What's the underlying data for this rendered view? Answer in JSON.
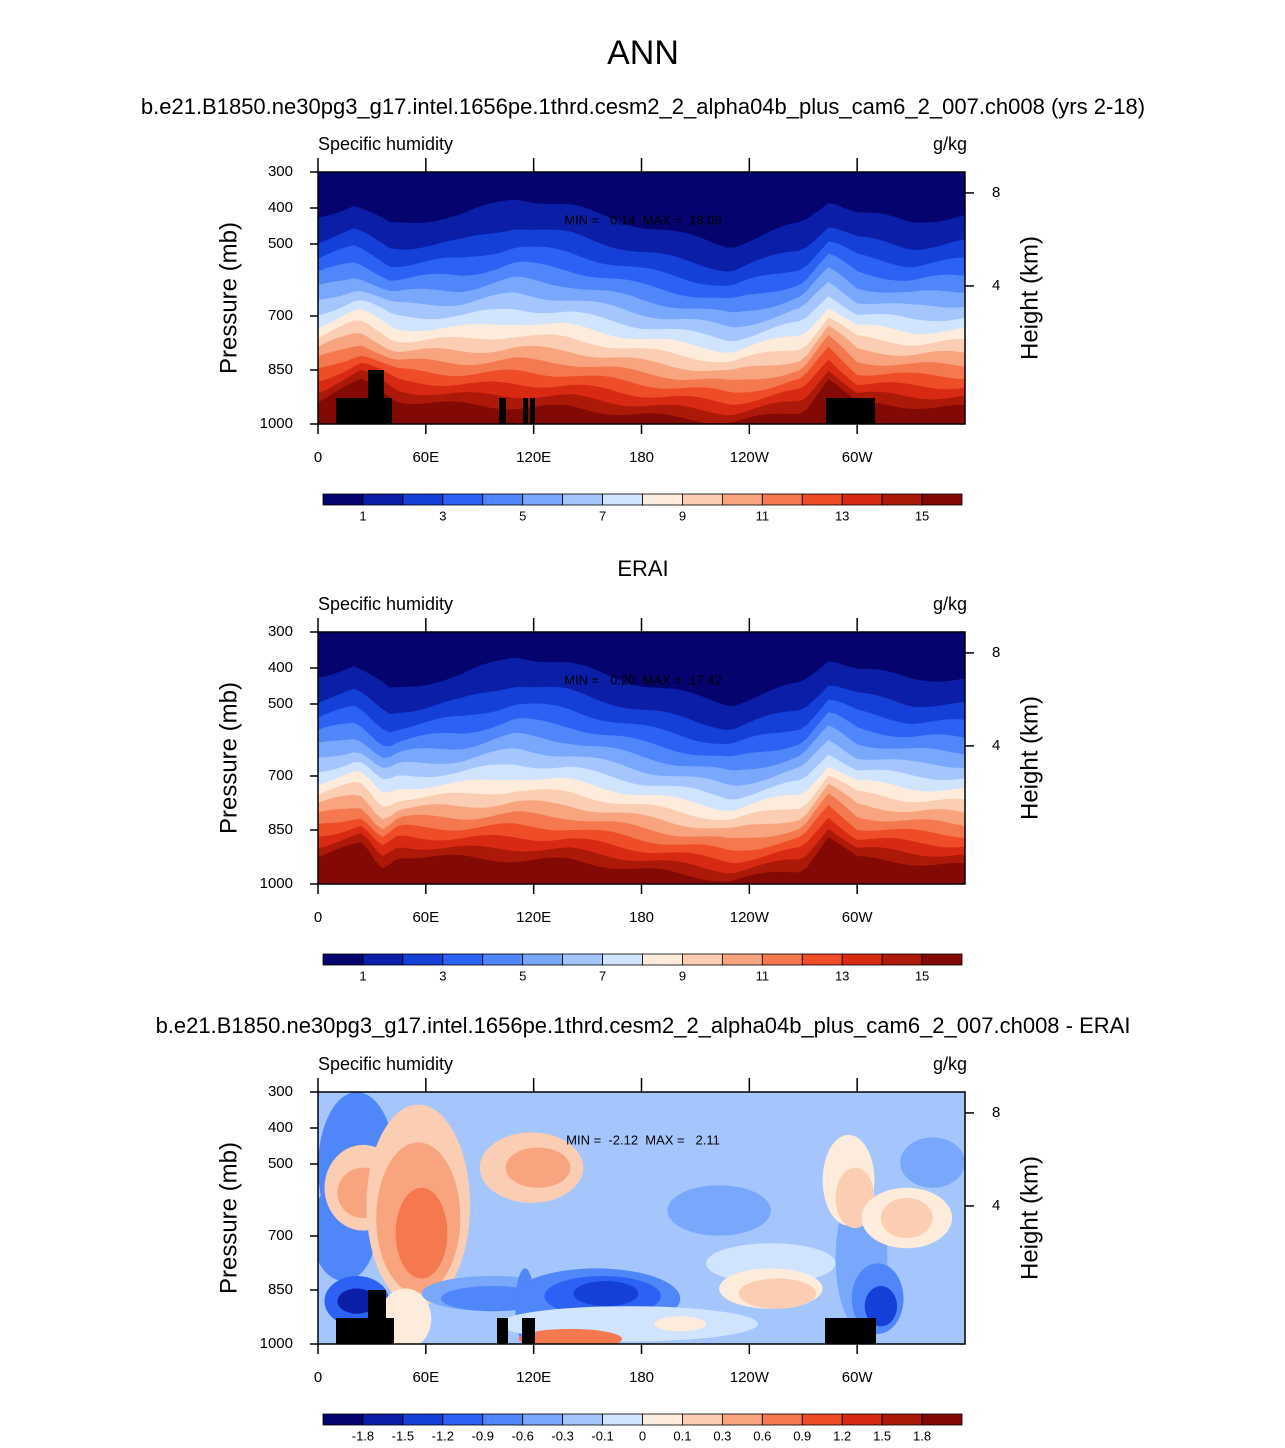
{
  "title": "ANN",
  "chart_data": [
    {
      "type": "contour",
      "title": "b.e21.B1850.ne30pg3_g17.intel.1656pe.1thrd.cesm2_2_alpha04b_plus_cam6_2_007.ch008 (yrs 2-18)",
      "left_label": "Specific humidity",
      "right_label": "g/kg",
      "ylabel": "Pressure (mb)",
      "y2label": "Height (km)",
      "ylim": [
        300,
        1000
      ],
      "y_inverted": true,
      "yticks": [
        300,
        400,
        500,
        700,
        850,
        1000
      ],
      "y2lim": [
        -1.94,
        8.9
      ],
      "y2ticks": [
        8,
        4
      ],
      "xlim": [
        0,
        360
      ],
      "xticks": [
        0,
        {
          "value": 60,
          "label": "60E"
        },
        {
          "value": 120,
          "label": "120E"
        },
        180,
        {
          "value": 240,
          "label": "120W"
        },
        {
          "value": 300,
          "label": "60W"
        }
      ],
      "stats": "MIN =   0.14  MAX =  18.09",
      "field": "model",
      "colorbar": {
        "clim": [
          0,
          16
        ],
        "levels": [
          1,
          3,
          5,
          7,
          9,
          11,
          13,
          15
        ],
        "colors": [
          "#05036e",
          "#0a1ea8",
          "#1540d8",
          "#2b62f4",
          "#4f86f9",
          "#79a7fb",
          "#a5c6fc",
          "#d0e4fd",
          "#fdecdb",
          "#fbcdb2",
          "#f8a47f",
          "#f4794f",
          "#ee4d27",
          "#d82a13",
          "#ad1908",
          "#830a04"
        ]
      }
    },
    {
      "type": "contour",
      "title": "ERAI",
      "left_label": "Specific humidity",
      "right_label": "g/kg",
      "ylabel": "Pressure (mb)",
      "y2label": "Height (km)",
      "ylim": [
        300,
        1000
      ],
      "y_inverted": true,
      "yticks": [
        300,
        400,
        500,
        700,
        850,
        1000
      ],
      "y2lim": [
        -1.94,
        8.9
      ],
      "y2ticks": [
        8,
        4
      ],
      "xlim": [
        0,
        360
      ],
      "xticks": [
        0,
        {
          "value": 60,
          "label": "60E"
        },
        {
          "value": 120,
          "label": "120E"
        },
        180,
        {
          "value": 240,
          "label": "120W"
        },
        {
          "value": 300,
          "label": "60W"
        }
      ],
      "stats": "MIN =   0.20  MAX =  17.42",
      "field": "obs",
      "colorbar": {
        "clim": [
          0,
          16
        ],
        "levels": [
          1,
          3,
          5,
          7,
          9,
          11,
          13,
          15
        ],
        "colors": [
          "#05036e",
          "#0a1ea8",
          "#1540d8",
          "#2b62f4",
          "#4f86f9",
          "#79a7fb",
          "#a5c6fc",
          "#d0e4fd",
          "#fdecdb",
          "#fbcdb2",
          "#f8a47f",
          "#f4794f",
          "#ee4d27",
          "#d82a13",
          "#ad1908",
          "#830a04"
        ]
      }
    },
    {
      "type": "contour",
      "title": "b.e21.B1850.ne30pg3_g17.intel.1656pe.1thrd.cesm2_2_alpha04b_plus_cam6_2_007.ch008 - ERAI",
      "left_label": "Specific humidity",
      "right_label": "g/kg",
      "ylabel": "Pressure (mb)",
      "y2label": "Height (km)",
      "ylim": [
        300,
        1000
      ],
      "y_inverted": true,
      "yticks": [
        300,
        400,
        500,
        700,
        850,
        1000
      ],
      "y2lim": [
        -1.94,
        8.9
      ],
      "y2ticks": [
        8,
        4
      ],
      "xlim": [
        0,
        360
      ],
      "xticks": [
        0,
        {
          "value": 60,
          "label": "60E"
        },
        {
          "value": 120,
          "label": "120E"
        },
        180,
        {
          "value": 240,
          "label": "120W"
        },
        {
          "value": 300,
          "label": "60W"
        }
      ],
      "stats": "MIN =  -2.12  MAX =   2.11",
      "field": "diff",
      "colorbar": {
        "levels": [
          -1.8,
          -1.5,
          -1.2,
          -0.9,
          -0.6,
          -0.3,
          -0.1,
          0,
          0.1,
          0.3,
          0.6,
          0.9,
          1.2,
          1.5,
          1.8
        ],
        "colors": [
          "#05036e",
          "#0a1ea8",
          "#1540d8",
          "#2b62f4",
          "#4f86f9",
          "#79a7fb",
          "#a5c6fc",
          "#d0e4fd",
          "#fdecdb",
          "#fbcdb2",
          "#f8a47f",
          "#f4794f",
          "#ee4d27",
          "#d82a13",
          "#ad1908",
          "#830a04"
        ]
      }
    }
  ]
}
